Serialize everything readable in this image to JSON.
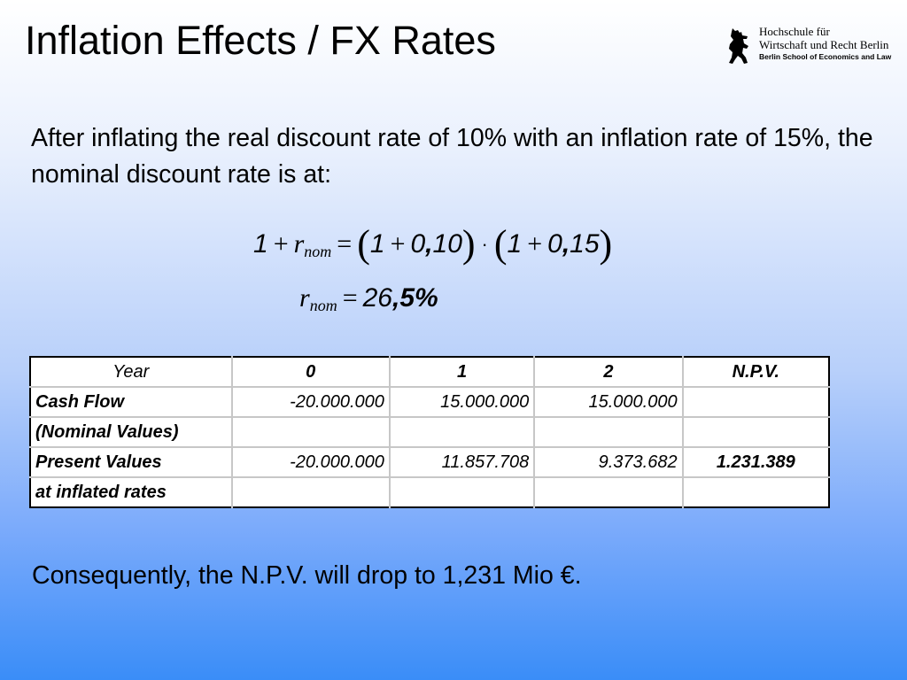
{
  "slide": {
    "title": "Inflation Effects / FX Rates",
    "intro": "After inflating the real discount rate of 10% with an inflation rate of 15%, the nominal discount rate is at:",
    "conclusion": "Consequently, the N.P.V. will drop to 1,231 Mio €."
  },
  "logo": {
    "line1": "Hochschule für",
    "line2": "Wirtschaft und Recht Berlin",
    "line3": "Berlin School of Economics and Law",
    "icon": "bear-icon"
  },
  "formula": {
    "line1": {
      "one_a": "1",
      "plus_a": "+",
      "r": "r",
      "sub": "nom",
      "eq": "=",
      "lp1": "(",
      "one_b": "1",
      "plus_b": "+",
      "zero_a": "0",
      "comma_a": ",",
      "ten": "10",
      "rp1": ")",
      "dot": "·",
      "lp2": "(",
      "one_c": "1",
      "plus_c": "+",
      "zero_b": "0",
      "comma_b": ",",
      "fifteen": "15",
      "rp2": ")"
    },
    "line2": {
      "r": "r",
      "sub": "nom",
      "eq": "=",
      "int": "26",
      "comma": ",",
      "dec": "5%"
    }
  },
  "table": {
    "headers": [
      "Year",
      "0",
      "1",
      "2",
      "N.P.V."
    ],
    "rows": [
      [
        "Cash Flow",
        "-20.000.000",
        "15.000.000",
        "15.000.000",
        ""
      ],
      [
        "(Nominal Values)",
        "",
        "",
        "",
        ""
      ],
      [
        "Present Values",
        "-20.000.000",
        "11.857.708",
        "9.373.682",
        "1.231.389"
      ],
      [
        "at inflated rates",
        "",
        "",
        "",
        ""
      ]
    ]
  }
}
